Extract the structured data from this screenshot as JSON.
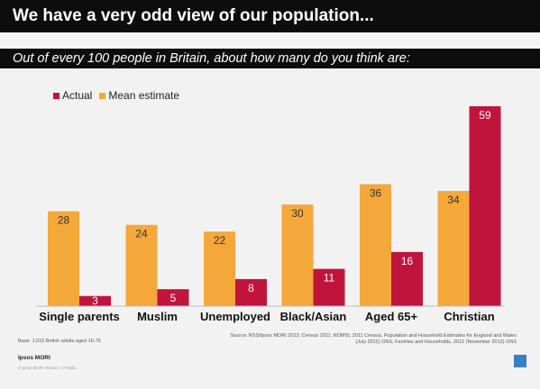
{
  "title": "We have a very odd view of our population...",
  "subtitle": "Out of every 100 people in Britain, about how many do you think are:",
  "colors": {
    "actual": "#c0143c",
    "mean_estimate": "#f5a83a",
    "title_bg": "#0d0d0d",
    "panel_bg": "#f2f2f2"
  },
  "chart_data": {
    "type": "bar",
    "categories": [
      "Single parents",
      "Muslim",
      "Unemployed",
      "Black/Asian",
      "Aged 65+",
      "Christian"
    ],
    "series": [
      {
        "name": "Mean estimate",
        "values": [
          28,
          24,
          22,
          30,
          36,
          34
        ]
      },
      {
        "name": "Actual",
        "values": [
          3,
          5,
          8,
          11,
          16,
          59
        ]
      }
    ],
    "legend": [
      "Actual",
      "Mean estimate"
    ],
    "legend_position": "top-left",
    "ylim": [
      0,
      59
    ],
    "grid": false
  },
  "footer": {
    "base": "Base: 1,015 British adults aged 16-75",
    "source": "Source: RSS/Ipsos MORI 2013; Census 2011; NOMIS; 2011 Census, Population and Household Estimates for England and Wales\n(July 2012) ONS; Families and Households, 2012 (November 2012) ONS",
    "brand": "Ipsos MORI",
    "copyright": "© Ipsos MORI    Version 1 | Public",
    "logo_text": "Ipsos"
  }
}
